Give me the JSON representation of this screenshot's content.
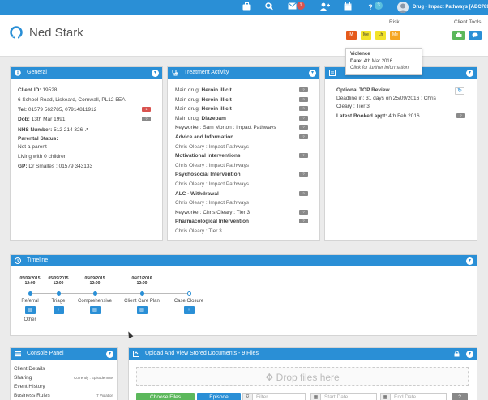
{
  "topbar": {
    "message_count": "1",
    "help_count": "3",
    "user_label": "Drug - Impact Pathways [ABC789]"
  },
  "client": {
    "name": "Ned Stark"
  },
  "header": {
    "risk_label": "Risk",
    "client_tools_label": "Client Tools",
    "risk_buttons": [
      "M",
      "Me",
      "Lh",
      "Me"
    ]
  },
  "tooltip": {
    "title": "Violence",
    "date_label": "Date:",
    "date_value": "4th Mar 2016",
    "hint": "Click for further information."
  },
  "general": {
    "title": "General",
    "client_id_label": "Client ID:",
    "client_id": "19528",
    "address": "6 School Road, Liskeard, Cornwall, PL12 5EA",
    "tel_label": "Tel:",
    "tel": "01579 562785, 07914811912",
    "dob_label": "Dob:",
    "dob": "13th Mar 1991",
    "nhs_label": "NHS Number:",
    "nhs": "512 214 326",
    "parental_label": "Parental Status:",
    "parental_1": "Not a parent",
    "parental_2": "Living with 0 children",
    "gp_label": "GP:",
    "gp": "Dr Smalles : 01579 343133"
  },
  "treatment": {
    "title": "Treatment Activity",
    "rows": [
      {
        "prefix": "Main drug:",
        "bold": "Heroin illicit"
      },
      {
        "prefix": "Main drug:",
        "bold": "Heroin illicit"
      },
      {
        "prefix": "Main drug:",
        "bold": "Heroin illicit"
      },
      {
        "prefix": "Main drug:",
        "bold": "Diazepam"
      },
      {
        "prefix": "Keyworker:",
        "bold": "",
        "rest": "Sam Morton : Impact Pathways"
      },
      {
        "prefix": "",
        "bold": "Advice and Information"
      },
      {
        "prefix": "",
        "bold": "",
        "rest": "Chris Oleary : Impact Pathways"
      },
      {
        "prefix": "",
        "bold": "Motivational interventions"
      },
      {
        "prefix": "",
        "bold": "",
        "rest": "Chris Oleary : Impact Pathways"
      },
      {
        "prefix": "",
        "bold": "Psychosocial Intervention"
      },
      {
        "prefix": "",
        "bold": "",
        "rest": "Chris Oleary : Impact Pathways"
      },
      {
        "prefix": "",
        "bold": "ALC - Withdrawal"
      },
      {
        "prefix": "",
        "bold": "",
        "rest": "Chris Oleary : Impact Pathways"
      },
      {
        "prefix": "Keyworker:",
        "bold": "",
        "rest": "Chris Oleary : Tier 3"
      },
      {
        "prefix": "",
        "bold": "Pharmacological Intervention"
      },
      {
        "prefix": "",
        "bold": "",
        "rest": "Chris Oleary : Tier 3"
      }
    ]
  },
  "third_panel": {
    "optional_top": "Optional TOP Review",
    "deadline": "Deadline in: 31 days on 25/09/2016 : Chris",
    "deadline_2": "Oleary : Tier 3",
    "appt_label": "Latest Booked appt:",
    "appt_value": "4th Feb 2016"
  },
  "timeline": {
    "title": "Timeline",
    "events": [
      {
        "date": "05/09/2015",
        "time": "12:00",
        "label": "Referral",
        "sub": "Other"
      },
      {
        "date": "05/09/2015",
        "time": "12:00",
        "label": "Triage",
        "sub": ""
      },
      {
        "date": "05/09/2015",
        "time": "12:00",
        "label": "Comprehensive",
        "sub": ""
      },
      {
        "date": "06/01/2016",
        "time": "12:00",
        "label": "Client Care Plan",
        "sub": ""
      },
      {
        "date": "",
        "time": "",
        "label": "Case Closure",
        "sub": ""
      }
    ]
  },
  "console": {
    "title": "Console Panel",
    "items": [
      {
        "label": "Client Details",
        "note": ""
      },
      {
        "label": "Sharing",
        "note": "Currently : Episode Insel"
      },
      {
        "label": "Event History",
        "note": ""
      },
      {
        "label": "Business Rules",
        "note": "7 Violation"
      }
    ]
  },
  "upload": {
    "title": "Upload And View Stored Documents - 9 Files",
    "drop_text": "Drop files here",
    "choose_files": "Choose Files",
    "episode": "Episode",
    "filter_placeholder": "Filter",
    "start_placeholder": "Start Date",
    "end_placeholder": "End Date",
    "help_btn": "?"
  },
  "colors": {
    "accent": "#2a8fd6",
    "risk_red": "#e55a1c",
    "risk_yellow": "#f2e229",
    "risk_orange": "#f5a623",
    "green": "#5cb85c"
  }
}
